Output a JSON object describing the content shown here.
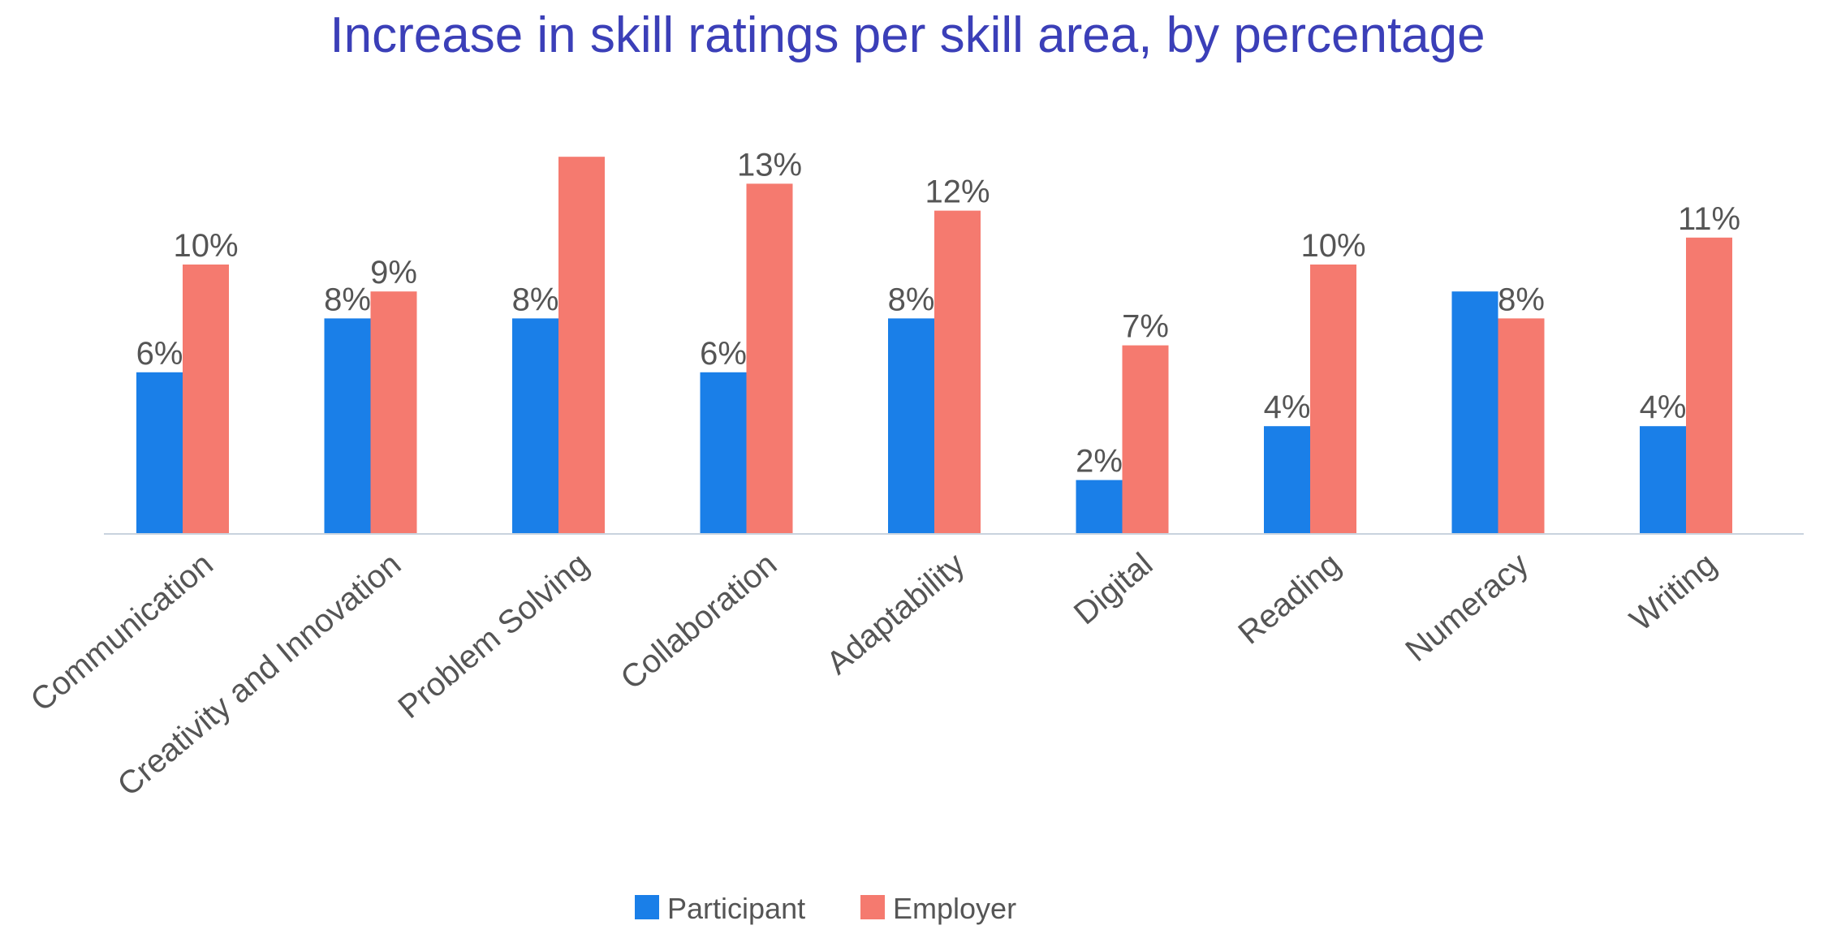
{
  "colors": {
    "title": "#3b3fb8",
    "participant": "#1a7fe8",
    "employer": "#f57a6f",
    "axis": "#c9d3de",
    "text": "#555555",
    "background": "#ffffff"
  },
  "chart_data": {
    "type": "bar",
    "title": "Increase in skill ratings per skill area, by percentage",
    "xlabel": "",
    "ylabel": "",
    "ylim": [
      0,
      14
    ],
    "grid": false,
    "legend_position": "bottom-center",
    "categories": [
      "Communication",
      "Creativity and Innovation",
      "Problem Solving",
      "Collaboration",
      "Adaptability",
      "Digital",
      "Reading",
      "Numeracy",
      "Writing"
    ],
    "series": [
      {
        "name": "Participant",
        "values": [
          6,
          8,
          8,
          6,
          8,
          2,
          4,
          9,
          4
        ],
        "labels": [
          "6%",
          "8%",
          "8%",
          "6%",
          "8%",
          "2%",
          "4%",
          "",
          "4%"
        ]
      },
      {
        "name": "Employer",
        "values": [
          10,
          9,
          14,
          13,
          12,
          7,
          10,
          8,
          11
        ],
        "labels": [
          "10%",
          "9%",
          "",
          "13%",
          "12%",
          "7%",
          "10%",
          "8%",
          "11%"
        ]
      }
    ]
  }
}
